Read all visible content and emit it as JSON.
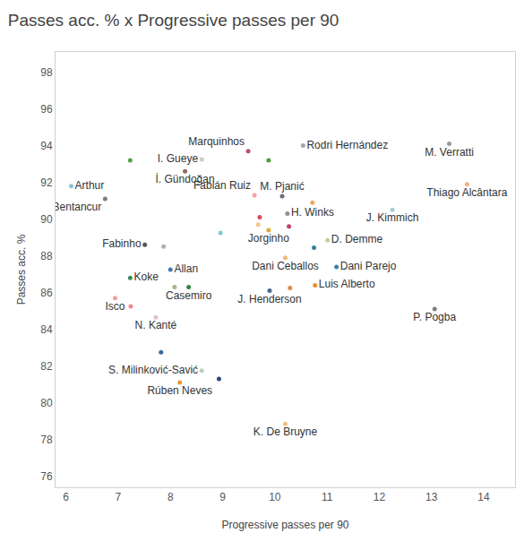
{
  "chart_data": {
    "type": "scatter",
    "title": "Passes acc. % x Progressive passes per 90",
    "x_label": "Progressive passes per 90",
    "y_label": "Passes acc. %",
    "marker": "circle",
    "grid": false,
    "xlim": [
      5.8,
      14.6
    ],
    "xticks": [
      6,
      7,
      8,
      9,
      10,
      11,
      12,
      13,
      14
    ],
    "ylim": [
      75.4,
      99.1
    ],
    "yticks": [
      76,
      78,
      80,
      82,
      84,
      86,
      88,
      90,
      92,
      94,
      96,
      98
    ],
    "x": [
      6.1,
      6.75,
      7.23,
      8.6,
      8.28,
      9.49,
      9.88,
      10.54,
      13.34,
      13.68,
      12.25,
      10.14,
      10.72,
      9.61,
      9.71,
      10.24,
      10.27,
      9.68,
      9.88,
      8.96,
      11.01,
      10.75,
      7.51,
      7.87,
      10.2,
      11.18,
      8.0,
      7.23,
      8.08,
      8.35,
      9.9,
      10.29,
      10.77,
      6.94,
      7.24,
      7.72,
      13.06,
      7.82,
      8.6,
      8.93,
      8.18,
      10.2
    ],
    "y": [
      91.8,
      91.1,
      93.2,
      93.25,
      92.6,
      93.7,
      93.2,
      94.0,
      94.1,
      91.9,
      90.5,
      91.25,
      90.9,
      91.3,
      90.1,
      90.3,
      89.6,
      89.7,
      89.4,
      89.25,
      88.85,
      88.45,
      88.6,
      88.5,
      87.9,
      87.4,
      87.25,
      86.8,
      86.3,
      86.3,
      86.1,
      86.25,
      86.4,
      85.7,
      85.25,
      84.65,
      85.1,
      82.75,
      81.75,
      81.3,
      81.1,
      78.85
    ],
    "labels": [
      "Arthur",
      "R. Bentancur",
      null,
      "I. Gueye",
      "İ. Gündoğan",
      "Marquinhos",
      null,
      "Rodri Hernández",
      "M. Verratti",
      "Thiago Alcântara",
      "J. Kimmich",
      "M. Pjanić",
      null,
      "Fabián Ruiz",
      null,
      "H. Winks",
      null,
      null,
      "Jorginho",
      null,
      "D. Demme",
      null,
      "Fabinho",
      null,
      "Dani Ceballos",
      "Dani Parejo",
      "Allan",
      "Koke",
      null,
      "Casemiro",
      "J. Henderson",
      null,
      "Luis Alberto",
      "Isco",
      null,
      "N. Kanté",
      "P. Pogba",
      null,
      "S. Milinković-Savić",
      null,
      "Rúben Neves",
      "K. De Bruyne"
    ],
    "colors": [
      "#8cc2e0",
      "#7f7f7f",
      "#59a14f",
      "#c7cfc0",
      "#8c6d5c",
      "#c44e66",
      "#4e9a3f",
      "#b0a0a0",
      "#9a9a9a",
      "#f5b27a",
      "#9fd3d0",
      "#6b6b7b",
      "#f0a860",
      "#f4a0a0",
      "#d94b58",
      "#9a8aa0",
      "#c04060",
      "#f5c98a",
      "#e8a838",
      "#8ac4d8",
      "#b9d88f",
      "#3b7fa3",
      "#555555",
      "#b0b0b0",
      "#f0b878",
      "#3f7fb0",
      "#4878b8",
      "#3c8f5e",
      "#b0b090",
      "#3d7f4a",
      "#4a6a90",
      "#d8903c",
      "#e8902a",
      "#f0a0a0",
      "#f08890",
      "#e0c0c8",
      "#808080",
      "#3a6a9a",
      "#c0d0c0",
      "#2a4a80",
      "#e89a30",
      "#f0c080"
    ]
  }
}
